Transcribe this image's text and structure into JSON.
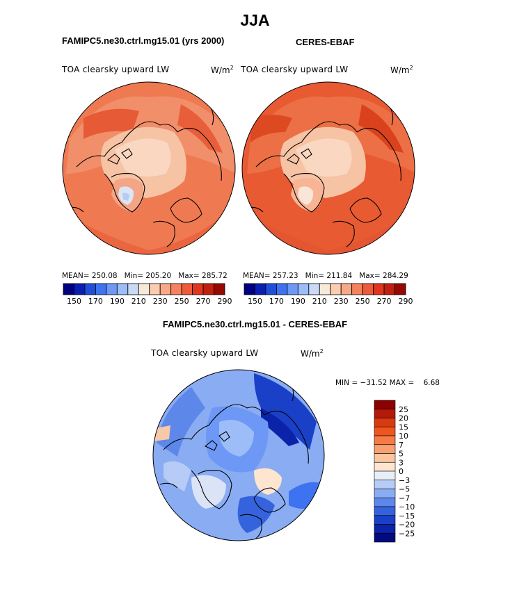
{
  "figure": {
    "season": "JJA",
    "left_panel_title": "FAMIPC5.ne30.ctrl.mg15.01 (yrs 2000)",
    "right_panel_title": "CERES-EBAF",
    "diff_title": "FAMIPC5.ne30.ctrl.mg15.01 - CERES-EBAF"
  },
  "panels": [
    {
      "variable": "TOA clearsky upward LW",
      "units_base": "W/m",
      "units_exp": "2",
      "stats": {
        "mean_label": "MEAN=",
        "mean": "250.08",
        "min_label": "Min=",
        "min": "205.20",
        "max_label": "Max=",
        "max": "285.72"
      }
    },
    {
      "variable": "TOA clearsky upward LW",
      "units_base": "W/m",
      "units_exp": "2",
      "stats": {
        "mean_label": "MEAN=",
        "mean": "257.23",
        "min_label": "Min=",
        "min": "211.84",
        "max_label": "Max=",
        "max": "284.29"
      }
    }
  ],
  "diff_panel": {
    "variable": "TOA clearsky upward LW",
    "units_base": "W/m",
    "units_exp": "2",
    "minmax_text": "MIN = −31.52 MAX =    6.68"
  },
  "colors": {
    "abs_bar": [
      "#00007f",
      "#0b1eb3",
      "#1f4fd9",
      "#3d73f0",
      "#6d98f5",
      "#9cbdf7",
      "#c9d9f6",
      "#f8ead9",
      "#fbccb0",
      "#f8a988",
      "#f4825f",
      "#ee5a3a",
      "#e0361e",
      "#c0200f",
      "#960800"
    ],
    "diff_bar": [
      "#8b0000",
      "#b31a0a",
      "#d93a10",
      "#f05520",
      "#f57a45",
      "#f8a070",
      "#fbc5a0",
      "#fde5d0",
      "#e8eef8",
      "#b6cbf5",
      "#8aacf2",
      "#5d88ea",
      "#3563de",
      "#1a40c8",
      "#0b23a8",
      "#020a80"
    ],
    "land_line": "#000000",
    "sea_model": "#ee6a43",
    "sea_obs": "#e8502a"
  },
  "chart_data": [
    {
      "type": "heatmap",
      "projection": "north-polar-stereographic",
      "title": "FAMIPC5.ne30.ctrl.mg15.01 (yrs 2000)",
      "variable": "TOA clearsky upward LW",
      "units": "W/m^2",
      "levels": [
        150,
        160,
        170,
        180,
        190,
        200,
        210,
        220,
        230,
        240,
        250,
        260,
        270,
        280,
        290
      ],
      "colorbar_labels": [
        "150",
        "170",
        "190",
        "210",
        "230",
        "250",
        "270",
        "290"
      ],
      "mean": 250.08,
      "min": 205.2,
      "max": 285.72
    },
    {
      "type": "heatmap",
      "projection": "north-polar-stereographic",
      "title": "CERES-EBAF",
      "variable": "TOA clearsky upward LW",
      "units": "W/m^2",
      "levels": [
        150,
        160,
        170,
        180,
        190,
        200,
        210,
        220,
        230,
        240,
        250,
        260,
        270,
        280,
        290
      ],
      "colorbar_labels": [
        "150",
        "170",
        "190",
        "210",
        "230",
        "250",
        "270",
        "290"
      ],
      "mean": 257.23,
      "min": 211.84,
      "max": 284.29
    },
    {
      "type": "heatmap",
      "projection": "north-polar-stereographic",
      "title": "FAMIPC5.ne30.ctrl.mg15.01 - CERES-EBAF",
      "variable": "TOA clearsky upward LW",
      "units": "W/m^2",
      "levels": [
        25,
        20,
        15,
        10,
        7,
        5,
        3,
        0,
        -3,
        -5,
        -7,
        -10,
        -15,
        -20,
        -25
      ],
      "colorbar_labels": [
        "25",
        "20",
        "15",
        "10",
        "7",
        "5",
        "3",
        "0",
        "−3",
        "−5",
        "−7",
        "−10",
        "−15",
        "−20",
        "−25"
      ],
      "min": -31.52,
      "max": 6.68
    }
  ]
}
